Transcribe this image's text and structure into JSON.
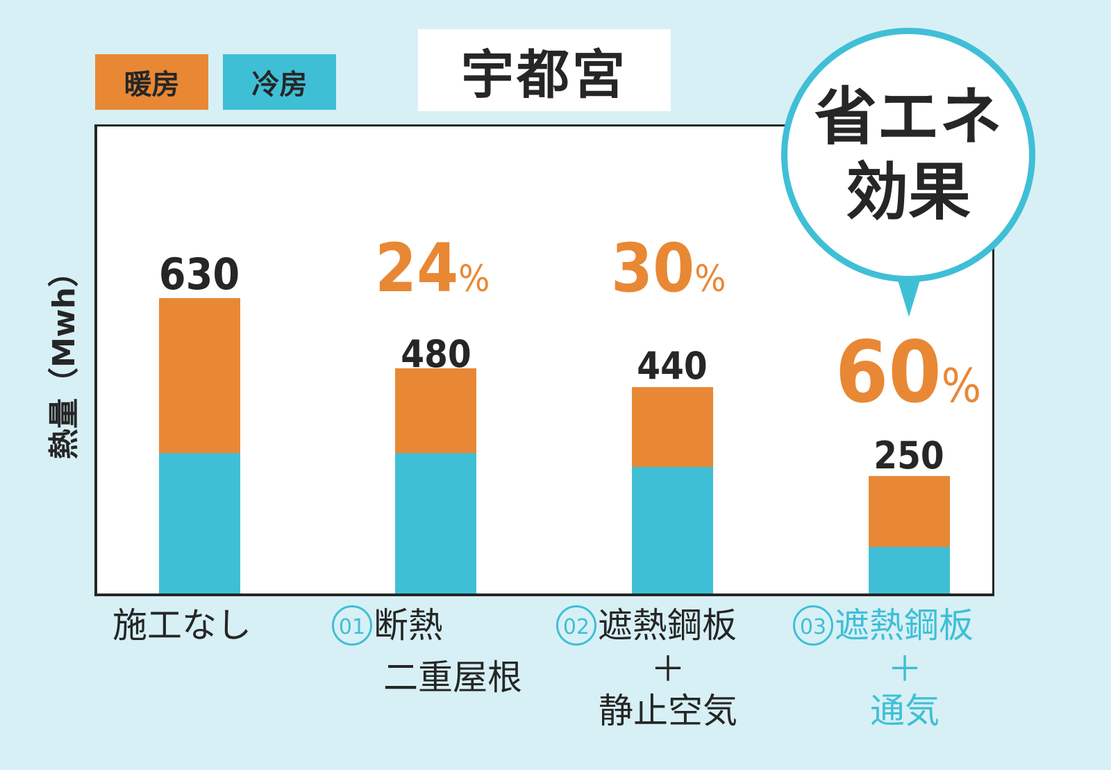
{
  "legend": {
    "heating": {
      "label": "暖房",
      "color": "#e88835"
    },
    "cooling": {
      "label": "冷房",
      "color": "#3fbfd6"
    }
  },
  "title": "宇都宮",
  "y_axis_label": "熱量（Mwh）",
  "bubble": {
    "line1": "省エネ",
    "line2": "効果"
  },
  "bars": [
    {
      "total": "630",
      "categories": [
        "施工なし"
      ],
      "badge": "",
      "pct": "",
      "highlight": false
    },
    {
      "total": "480",
      "categories": [
        "断熱",
        "二重屋根"
      ],
      "badge": "01",
      "pct": "24",
      "highlight": false
    },
    {
      "total": "440",
      "categories": [
        "遮熱鋼板",
        "＋",
        "静止空気"
      ],
      "badge": "02",
      "pct": "30",
      "highlight": false
    },
    {
      "total": "250",
      "categories": [
        "遮熱鋼板",
        "＋",
        "通気"
      ],
      "badge": "03",
      "pct": "60",
      "highlight": true
    }
  ],
  "percent_symbol": "%",
  "chart_data": {
    "type": "bar",
    "stacked": true,
    "title": "宇都宮",
    "xlabel": "",
    "ylabel": "熱量（Mwh）",
    "categories": [
      "施工なし",
      "01 断熱 二重屋根",
      "02 遮熱鋼板＋静止空気",
      "03 遮熱鋼板＋通気"
    ],
    "series": [
      {
        "name": "冷房",
        "color": "#3fbfd6",
        "values": [
          300,
          300,
          270,
          100
        ]
      },
      {
        "name": "暖房",
        "color": "#e88835",
        "values": [
          330,
          180,
          170,
          150
        ]
      }
    ],
    "totals": [
      630,
      480,
      440,
      250
    ],
    "reduction_percent": [
      null,
      24,
      30,
      60
    ],
    "annotations": [
      "省エネ効果",
      "24%",
      "30%",
      "60%"
    ],
    "legend": [
      "暖房",
      "冷房"
    ],
    "legend_position": "top-left",
    "ylim": [
      0,
      1000
    ],
    "grid": false,
    "y_ticks_shown": false
  }
}
